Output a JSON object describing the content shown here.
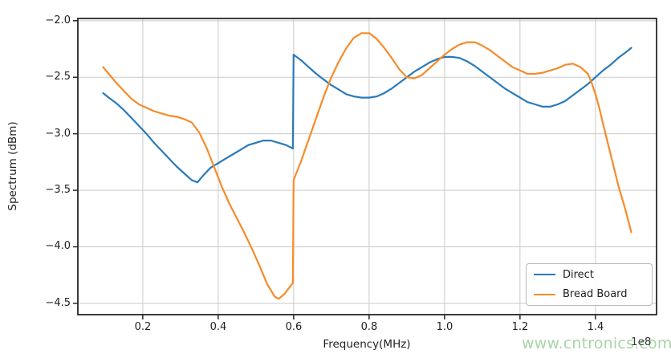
{
  "chart_data": {
    "type": "line",
    "title": "",
    "xlabel": "Frequency(MHz)",
    "ylabel": "Spectrum (dBm)",
    "x_offset_text": "1e8",
    "xlim": [
      0.028,
      1.562
    ],
    "ylim": [
      -4.6,
      -1.98
    ],
    "grid": true,
    "grid_color": "#c9c9c9",
    "spine_color": "#262626",
    "x_ticks": [
      0.2,
      0.4,
      0.6,
      0.8,
      1.0,
      1.2,
      1.4
    ],
    "x_tick_labels": [
      "0.2",
      "0.4",
      "0.6",
      "0.8",
      "1.0",
      "1.2",
      "1.4"
    ],
    "y_ticks": [
      -2.0,
      -2.5,
      -3.0,
      -3.5,
      -4.0,
      -4.5
    ],
    "y_tick_labels": [
      "−2.0",
      "−2.5",
      "−3.0",
      "−3.5",
      "−4.0",
      "−4.5"
    ],
    "legend": {
      "position": "lower right",
      "entries": [
        "Direct",
        "Bread Board"
      ]
    },
    "series": [
      {
        "name": "Direct",
        "color": "#2a7ab9",
        "points": [
          [
            0.095,
            -2.64
          ],
          [
            0.11,
            -2.68
          ],
          [
            0.13,
            -2.73
          ],
          [
            0.15,
            -2.79
          ],
          [
            0.17,
            -2.86
          ],
          [
            0.19,
            -2.93
          ],
          [
            0.21,
            -3.0
          ],
          [
            0.23,
            -3.08
          ],
          [
            0.25,
            -3.15
          ],
          [
            0.27,
            -3.22
          ],
          [
            0.29,
            -3.29
          ],
          [
            0.31,
            -3.35
          ],
          [
            0.33,
            -3.41
          ],
          [
            0.345,
            -3.43
          ],
          [
            0.36,
            -3.37
          ],
          [
            0.38,
            -3.3
          ],
          [
            0.4,
            -3.26
          ],
          [
            0.42,
            -3.22
          ],
          [
            0.44,
            -3.18
          ],
          [
            0.46,
            -3.14
          ],
          [
            0.48,
            -3.1
          ],
          [
            0.5,
            -3.08
          ],
          [
            0.52,
            -3.06
          ],
          [
            0.54,
            -3.06
          ],
          [
            0.56,
            -3.08
          ],
          [
            0.58,
            -3.1
          ],
          [
            0.598,
            -3.13
          ],
          [
            0.6,
            -2.3
          ],
          [
            0.62,
            -2.35
          ],
          [
            0.64,
            -2.41
          ],
          [
            0.66,
            -2.47
          ],
          [
            0.68,
            -2.52
          ],
          [
            0.7,
            -2.57
          ],
          [
            0.72,
            -2.61
          ],
          [
            0.74,
            -2.65
          ],
          [
            0.76,
            -2.67
          ],
          [
            0.78,
            -2.68
          ],
          [
            0.8,
            -2.68
          ],
          [
            0.82,
            -2.67
          ],
          [
            0.84,
            -2.64
          ],
          [
            0.86,
            -2.6
          ],
          [
            0.88,
            -2.55
          ],
          [
            0.9,
            -2.5
          ],
          [
            0.92,
            -2.45
          ],
          [
            0.94,
            -2.41
          ],
          [
            0.96,
            -2.37
          ],
          [
            0.98,
            -2.34
          ],
          [
            1.0,
            -2.32
          ],
          [
            1.02,
            -2.32
          ],
          [
            1.04,
            -2.33
          ],
          [
            1.06,
            -2.36
          ],
          [
            1.08,
            -2.4
          ],
          [
            1.1,
            -2.45
          ],
          [
            1.12,
            -2.5
          ],
          [
            1.14,
            -2.55
          ],
          [
            1.16,
            -2.6
          ],
          [
            1.18,
            -2.64
          ],
          [
            1.2,
            -2.68
          ],
          [
            1.22,
            -2.72
          ],
          [
            1.24,
            -2.74
          ],
          [
            1.26,
            -2.76
          ],
          [
            1.28,
            -2.76
          ],
          [
            1.3,
            -2.74
          ],
          [
            1.32,
            -2.71
          ],
          [
            1.34,
            -2.66
          ],
          [
            1.36,
            -2.61
          ],
          [
            1.38,
            -2.56
          ],
          [
            1.4,
            -2.5
          ],
          [
            1.42,
            -2.44
          ],
          [
            1.44,
            -2.39
          ],
          [
            1.46,
            -2.33
          ],
          [
            1.48,
            -2.28
          ],
          [
            1.495,
            -2.24
          ]
        ]
      },
      {
        "name": "Bread Board",
        "color": "#f78b29",
        "points": [
          [
            0.095,
            -2.41
          ],
          [
            0.11,
            -2.47
          ],
          [
            0.13,
            -2.55
          ],
          [
            0.15,
            -2.62
          ],
          [
            0.17,
            -2.69
          ],
          [
            0.19,
            -2.74
          ],
          [
            0.21,
            -2.77
          ],
          [
            0.23,
            -2.8
          ],
          [
            0.25,
            -2.82
          ],
          [
            0.27,
            -2.84
          ],
          [
            0.29,
            -2.85
          ],
          [
            0.31,
            -2.87
          ],
          [
            0.33,
            -2.9
          ],
          [
            0.35,
            -2.99
          ],
          [
            0.37,
            -3.13
          ],
          [
            0.39,
            -3.3
          ],
          [
            0.41,
            -3.47
          ],
          [
            0.43,
            -3.62
          ],
          [
            0.45,
            -3.75
          ],
          [
            0.47,
            -3.88
          ],
          [
            0.49,
            -4.02
          ],
          [
            0.51,
            -4.17
          ],
          [
            0.53,
            -4.33
          ],
          [
            0.55,
            -4.44
          ],
          [
            0.56,
            -4.46
          ],
          [
            0.575,
            -4.42
          ],
          [
            0.598,
            -4.32
          ],
          [
            0.6,
            -3.41
          ],
          [
            0.62,
            -3.24
          ],
          [
            0.64,
            -3.05
          ],
          [
            0.66,
            -2.86
          ],
          [
            0.68,
            -2.67
          ],
          [
            0.7,
            -2.5
          ],
          [
            0.72,
            -2.36
          ],
          [
            0.74,
            -2.24
          ],
          [
            0.76,
            -2.15
          ],
          [
            0.78,
            -2.11
          ],
          [
            0.8,
            -2.11
          ],
          [
            0.82,
            -2.16
          ],
          [
            0.84,
            -2.24
          ],
          [
            0.86,
            -2.33
          ],
          [
            0.88,
            -2.43
          ],
          [
            0.9,
            -2.5
          ],
          [
            0.92,
            -2.51
          ],
          [
            0.94,
            -2.48
          ],
          [
            0.96,
            -2.42
          ],
          [
            0.98,
            -2.36
          ],
          [
            1.0,
            -2.3
          ],
          [
            1.02,
            -2.25
          ],
          [
            1.04,
            -2.21
          ],
          [
            1.06,
            -2.19
          ],
          [
            1.08,
            -2.19
          ],
          [
            1.1,
            -2.22
          ],
          [
            1.12,
            -2.26
          ],
          [
            1.14,
            -2.31
          ],
          [
            1.16,
            -2.36
          ],
          [
            1.18,
            -2.41
          ],
          [
            1.2,
            -2.44
          ],
          [
            1.22,
            -2.47
          ],
          [
            1.24,
            -2.47
          ],
          [
            1.26,
            -2.46
          ],
          [
            1.28,
            -2.44
          ],
          [
            1.3,
            -2.42
          ],
          [
            1.32,
            -2.39
          ],
          [
            1.34,
            -2.38
          ],
          [
            1.36,
            -2.41
          ],
          [
            1.38,
            -2.47
          ],
          [
            1.39,
            -2.55
          ],
          [
            1.4,
            -2.65
          ],
          [
            1.41,
            -2.77
          ],
          [
            1.42,
            -2.91
          ],
          [
            1.44,
            -3.18
          ],
          [
            1.46,
            -3.45
          ],
          [
            1.48,
            -3.68
          ],
          [
            1.495,
            -3.87
          ]
        ]
      }
    ]
  },
  "watermark": {
    "text": "www.cntronics.com",
    "color": "#a8d5a8"
  }
}
